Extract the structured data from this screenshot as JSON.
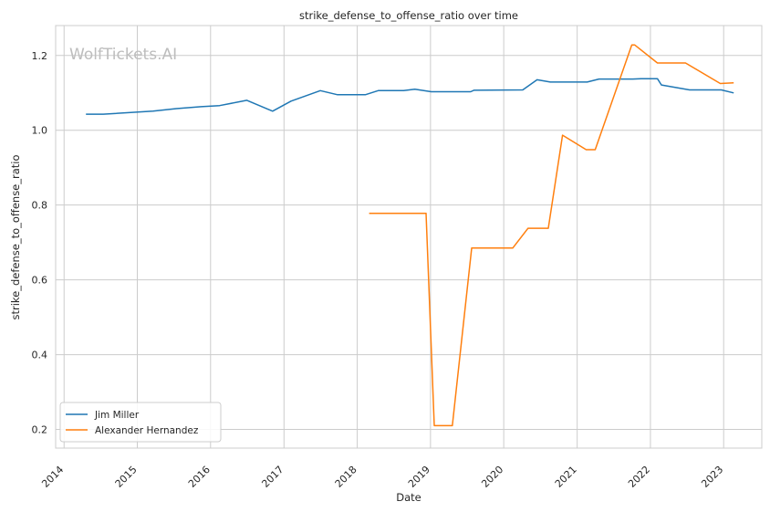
{
  "chart_data": {
    "type": "line",
    "title": "strike_defense_to_offense_ratio over time",
    "xlabel": "Date",
    "ylabel": "strike_defense_to_offense_ratio",
    "watermark": "WolfTickets.AI",
    "x_ticks": [
      "2014",
      "2015",
      "2016",
      "2017",
      "2018",
      "2019",
      "2020",
      "2021",
      "2022",
      "2023"
    ],
    "y_ticks": [
      "0.2",
      "0.4",
      "0.6",
      "0.8",
      "1.0",
      "1.2"
    ],
    "xlim": [
      "2013-11-20",
      "2023-07-10"
    ],
    "ylim": [
      0.15,
      1.28
    ],
    "grid": true,
    "legend_position": "lower-left",
    "series": [
      {
        "name": "Jim Miller",
        "color": "#1f77b4",
        "points": [
          [
            "2014-04-20",
            1.043
          ],
          [
            "2014-07-15",
            1.043
          ],
          [
            "2015-03-20",
            1.051
          ],
          [
            "2015-07-15",
            1.058
          ],
          [
            "2015-11-15",
            1.063
          ],
          [
            "2016-02-15",
            1.066
          ],
          [
            "2016-06-30",
            1.08
          ],
          [
            "2016-11-05",
            1.051
          ],
          [
            "2017-02-05",
            1.078
          ],
          [
            "2017-07-01",
            1.106
          ],
          [
            "2017-09-25",
            1.095
          ],
          [
            "2018-02-10",
            1.095
          ],
          [
            "2018-04-15",
            1.106
          ],
          [
            "2018-08-20",
            1.106
          ],
          [
            "2018-10-15",
            1.11
          ],
          [
            "2019-01-05",
            1.103
          ],
          [
            "2019-07-20",
            1.103
          ],
          [
            "2019-08-05",
            1.107
          ],
          [
            "2020-04-05",
            1.108
          ],
          [
            "2020-06-15",
            1.135
          ],
          [
            "2020-08-20",
            1.129
          ],
          [
            "2021-02-20",
            1.129
          ],
          [
            "2021-04-20",
            1.137
          ],
          [
            "2021-10-05",
            1.137
          ],
          [
            "2021-11-15",
            1.138
          ],
          [
            "2022-02-05",
            1.138
          ],
          [
            "2022-02-25",
            1.121
          ],
          [
            "2022-07-15",
            1.108
          ],
          [
            "2022-09-05",
            1.108
          ],
          [
            "2022-12-20",
            1.108
          ],
          [
            "2023-02-20",
            1.1
          ]
        ]
      },
      {
        "name": "Alexander Hernandez",
        "color": "#ff7f0e",
        "points": [
          [
            "2018-03-01",
            0.778
          ],
          [
            "2018-12-10",
            0.778
          ],
          [
            "2019-01-20",
            0.21
          ],
          [
            "2019-04-20",
            0.21
          ],
          [
            "2019-07-25",
            0.685
          ],
          [
            "2020-02-15",
            0.685
          ],
          [
            "2020-05-01",
            0.738
          ],
          [
            "2020-08-10",
            0.738
          ],
          [
            "2020-10-20",
            0.987
          ],
          [
            "2021-02-15",
            0.948
          ],
          [
            "2021-04-01",
            0.948
          ],
          [
            "2021-09-30",
            1.228
          ],
          [
            "2021-10-15",
            1.228
          ],
          [
            "2022-02-05",
            1.18
          ],
          [
            "2022-06-25",
            1.18
          ],
          [
            "2022-12-15",
            1.125
          ],
          [
            "2023-02-20",
            1.127
          ]
        ]
      }
    ]
  }
}
